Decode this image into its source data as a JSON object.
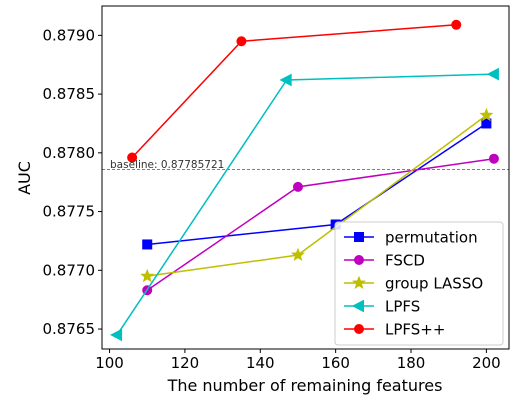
{
  "chart_data": {
    "type": "line",
    "title": "",
    "xlabel": "The number of remaining features",
    "ylabel": "AUC",
    "xlim": [
      98,
      206
    ],
    "ylim": [
      0.87633,
      0.87925
    ],
    "x_ticks": [
      100,
      120,
      140,
      160,
      180,
      200
    ],
    "x_tick_labels": [
      "100",
      "120",
      "140",
      "160",
      "180",
      "200"
    ],
    "y_ticks": [
      0.8765,
      0.877,
      0.8775,
      0.878,
      0.8785,
      0.879
    ],
    "y_tick_labels": [
      "0.8765",
      "0.8770",
      "0.8775",
      "0.8780",
      "0.8785",
      "0.8790"
    ],
    "grid": false,
    "legend_position": "lower-right",
    "baseline": {
      "value": 0.87785721,
      "label": "baseline: 0.87785721",
      "color": "#555555"
    },
    "series": [
      {
        "name": "permutation",
        "color": "#0000ff",
        "marker": "square",
        "x": [
          110,
          160,
          200
        ],
        "y": [
          0.87722,
          0.87739,
          0.87825
        ]
      },
      {
        "name": "FSCD",
        "color": "#bf00bf",
        "marker": "circle",
        "x": [
          110,
          150,
          202
        ],
        "y": [
          0.87683,
          0.87771,
          0.87795
        ]
      },
      {
        "name": "group LASSO",
        "color": "#bfbf00",
        "marker": "star",
        "x": [
          110,
          150,
          200
        ],
        "y": [
          0.87695,
          0.87713,
          0.87832
        ]
      },
      {
        "name": "LPFS",
        "color": "#00bfbf",
        "marker": "triangle-left",
        "x": [
          102,
          147,
          202
        ],
        "y": [
          0.87645,
          0.87862,
          0.87867
        ]
      },
      {
        "name": "LPFS++",
        "color": "#ff0000",
        "marker": "circle",
        "x": [
          106,
          135,
          192
        ],
        "y": [
          0.87796,
          0.87895,
          0.87909
        ]
      }
    ]
  }
}
